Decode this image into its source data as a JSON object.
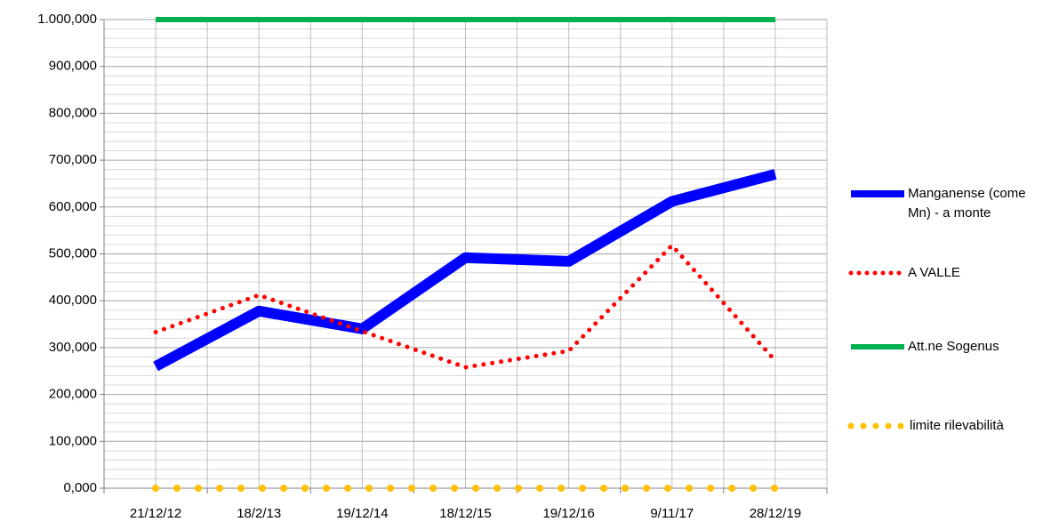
{
  "chart_data": {
    "type": "line",
    "categories": [
      "21/12/12",
      "18/2/13",
      "19/12/14",
      "18/12/15",
      "19/12/16",
      "9/11/17",
      "28/12/19"
    ],
    "series": [
      {
        "name": "Manganense (come Mn) - a monte",
        "color": "#0000ff",
        "style": "solid",
        "values": [
          260,
          378,
          340,
          492,
          484,
          612,
          670
        ]
      },
      {
        "name": "A VALLE",
        "color": "#ff0000",
        "style": "dotted",
        "values": [
          333,
          412,
          335,
          258,
          293,
          518,
          272
        ]
      },
      {
        "name": "Att.ne Sogenus",
        "color": "#00b050",
        "style": "solid",
        "values": [
          1000,
          1000,
          1000,
          1000,
          1000,
          1000,
          1000
        ]
      },
      {
        "name": "limite rilevabilità",
        "color": "#ffc000",
        "style": "dotted",
        "values": [
          0,
          0,
          0,
          0,
          0,
          0,
          0
        ]
      }
    ],
    "ylim": [
      0,
      1000
    ],
    "yticks": [
      {
        "value": 0,
        "label": "0,000"
      },
      {
        "value": 100,
        "label": "100,000"
      },
      {
        "value": 200,
        "label": "200,000"
      },
      {
        "value": 300,
        "label": "300,000"
      },
      {
        "value": 400,
        "label": "400,000"
      },
      {
        "value": 500,
        "label": "500,000"
      },
      {
        "value": 600,
        "label": "600,000"
      },
      {
        "value": 700,
        "label": "700,000"
      },
      {
        "value": 800,
        "label": "800,000"
      },
      {
        "value": 900,
        "label": "900,000"
      },
      {
        "value": 1000,
        "label": "1.000,000"
      }
    ],
    "grid": true,
    "legend": "right"
  }
}
